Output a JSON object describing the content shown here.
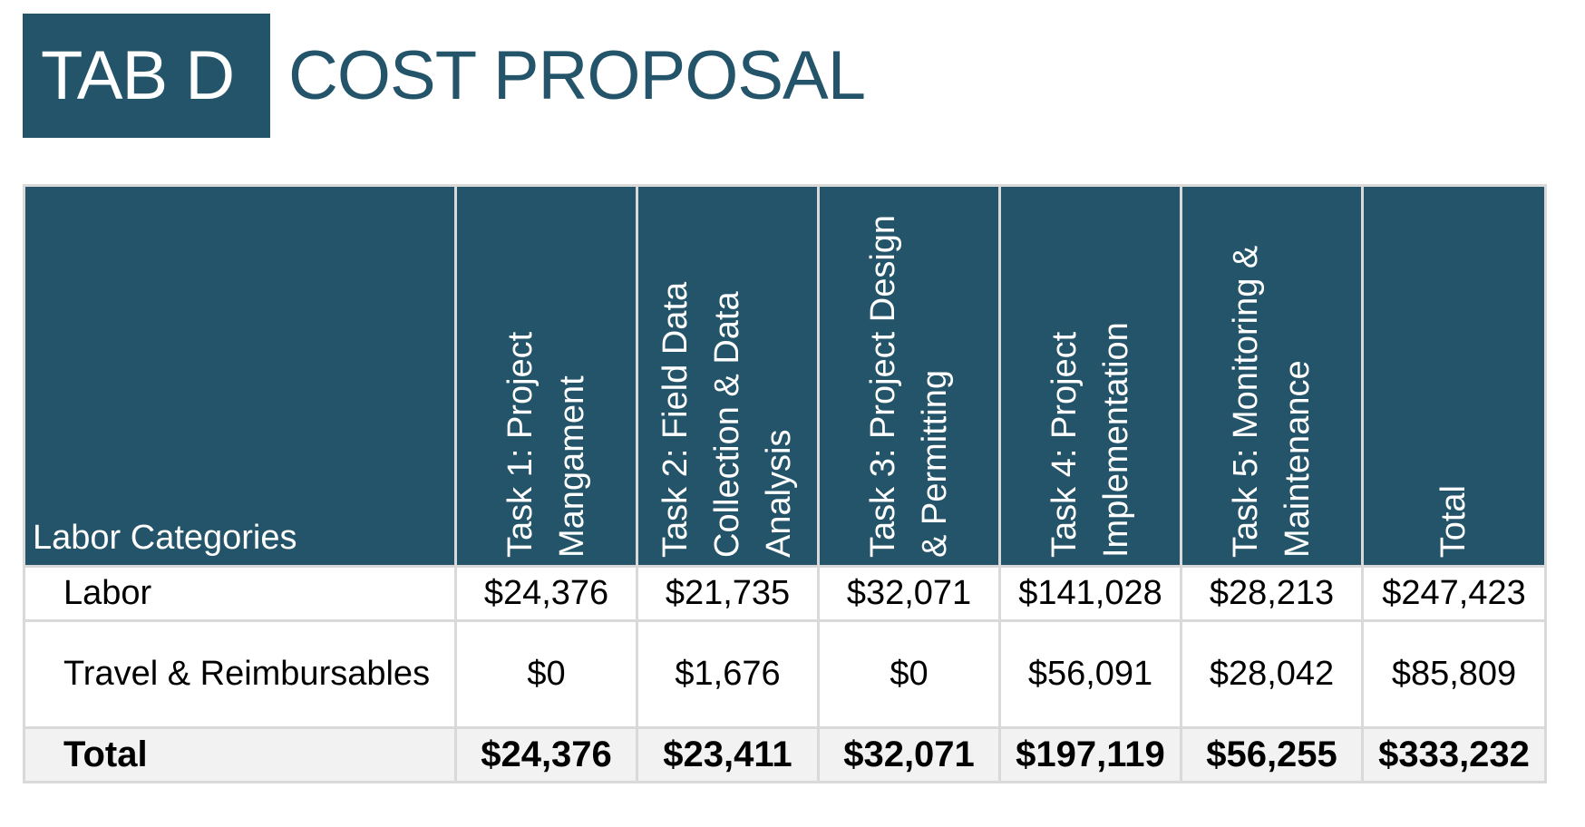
{
  "header": {
    "tab_label": "TAB D",
    "title": "COST PROPOSAL"
  },
  "table": {
    "columns": [
      "Labor Categories",
      "Task 1: Project Mangament",
      "Task 2:  Field Data Collection & Data Analysis",
      "Task 3: Project Design & Permitting",
      "Task 4: Project Implementation",
      "Task 5: Monitoring & Maintenance",
      "Total"
    ],
    "rows": [
      {
        "label": "Labor",
        "values": [
          "$24,376",
          "$21,735",
          "$32,071",
          "$141,028",
          "$28,213",
          "$247,423"
        ]
      },
      {
        "label": "Travel & Reimbursables",
        "values": [
          "$0",
          "$1,676",
          "$0",
          "$56,091",
          "$28,042",
          "$85,809"
        ]
      },
      {
        "label": "Total",
        "values": [
          "$24,376",
          "$23,411",
          "$32,071",
          "$197,119",
          "$56,255",
          "$333,232"
        ]
      }
    ]
  },
  "colors": {
    "brand": "#235469",
    "grid": "#d9d9d9",
    "total_row_bg": "#f2f2f2"
  }
}
